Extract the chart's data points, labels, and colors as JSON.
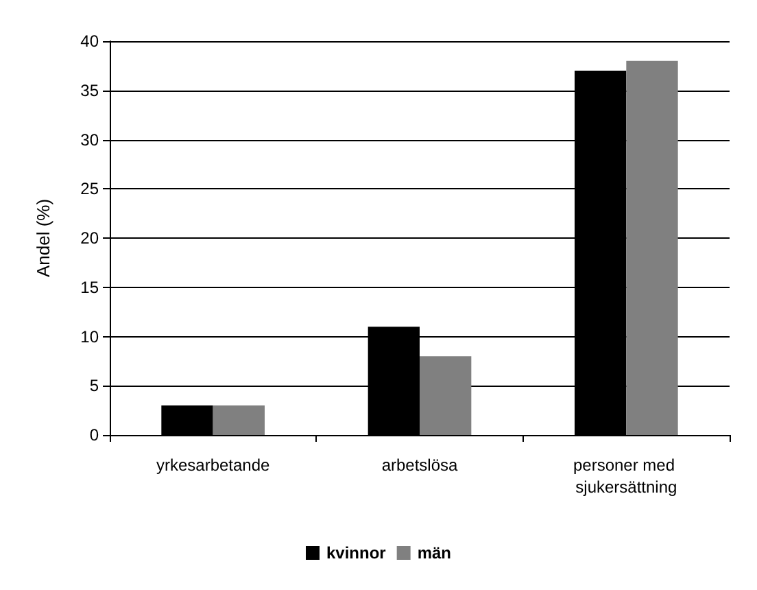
{
  "chart_data": {
    "type": "bar",
    "ylabel": "Andel (%)",
    "categories": [
      "yrkesarbetande",
      "arbetslösa",
      "personer med sjukersättning"
    ],
    "series": [
      {
        "name": "kvinnor",
        "color": "#000000",
        "values": [
          3,
          11,
          37
        ]
      },
      {
        "name": "män",
        "color": "#808080",
        "values": [
          3,
          8,
          38
        ]
      }
    ],
    "ylim": [
      0,
      40
    ],
    "yticks": [
      0,
      5,
      10,
      15,
      20,
      25,
      30,
      35,
      40
    ],
    "grid": "y",
    "legend": "bottom"
  }
}
